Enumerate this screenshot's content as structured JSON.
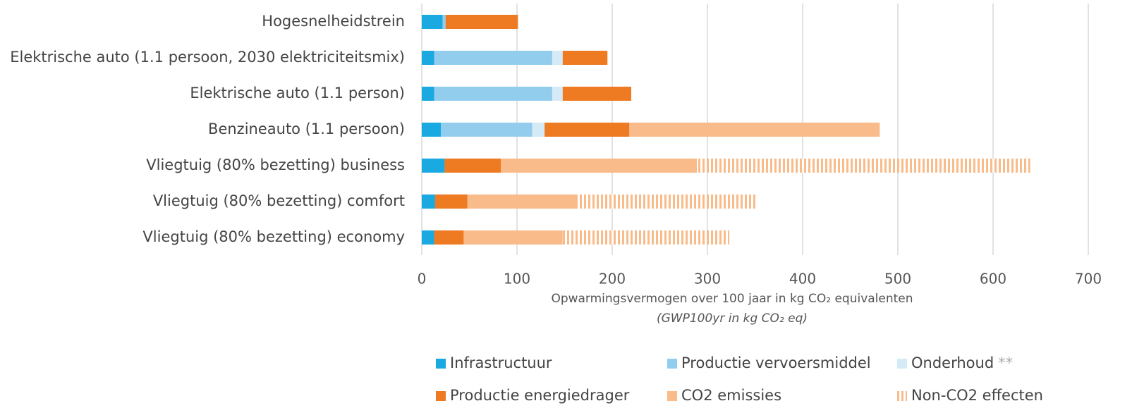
{
  "chart_data": {
    "type": "stacked-barh",
    "categories": [
      "Hogesnelheidstrein",
      "Elektrische auto (1.1 persoon, 2030 elektriciteitsmix)",
      "Elektrische auto (1.1 person)",
      "Benzineauto (1.1 persoon)",
      "Vliegtuig (80% bezetting) business",
      "Vliegtuig (80% bezetting) comfort",
      "Vliegtuig (80% bezetting) economy"
    ],
    "series": [
      {
        "name": "Infrastructuur",
        "color": "#1aa9e1",
        "values": [
          22,
          13,
          13,
          20,
          24,
          14,
          13
        ]
      },
      {
        "name": "Productie vervoersmiddel",
        "color": "#93cdee",
        "values": [
          3,
          124,
          124,
          96,
          null,
          null,
          null
        ]
      },
      {
        "name": "Onderhoud",
        "name_suffix": "**",
        "color": "#d4eaf7",
        "values": [
          null,
          11,
          11,
          13,
          null,
          null,
          null
        ]
      },
      {
        "name": "Productie energiedrager",
        "color": "#ee7a22",
        "values": [
          76,
          47,
          72,
          89,
          59,
          34,
          31
        ]
      },
      {
        "name": "CO2 emissies",
        "color": "#f8bb89",
        "values": [
          null,
          null,
          null,
          263,
          206,
          115,
          104
        ]
      },
      {
        "name": "Non-CO2 effecten",
        "color": "#f8bb89",
        "pattern": "hatch",
        "values": [
          null,
          null,
          null,
          null,
          350,
          189,
          175
        ]
      }
    ],
    "xlabel": "Opwarmingsvermogen over 100 jaar in kg CO₂ equivalenten",
    "xlabel_sub": "(GWP100yr in kg CO₂ eq)",
    "xlim": [
      0,
      700
    ],
    "xticks": [
      0,
      100,
      200,
      300,
      400,
      500,
      600,
      700
    ],
    "grid": true,
    "legend": "bottom"
  }
}
